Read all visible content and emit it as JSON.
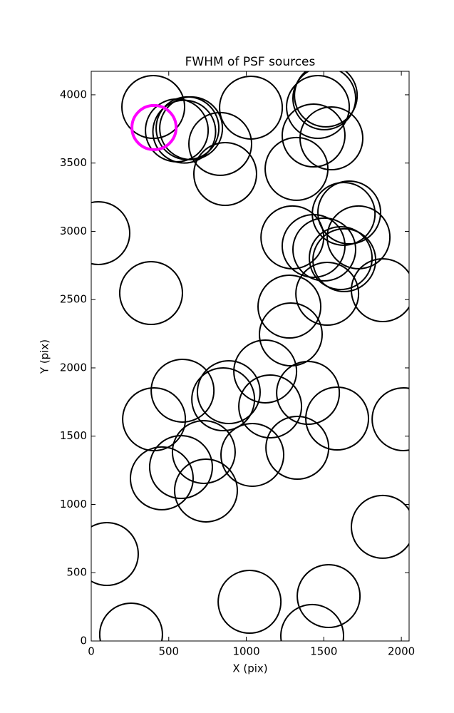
{
  "chart_data": {
    "type": "scatter",
    "title": "FWHM of PSF sources",
    "x_label": "X (pix)",
    "y_label": "Y (pix)",
    "xlim": [
      0,
      2050
    ],
    "ylim": [
      0,
      4172
    ],
    "xticks": [
      0,
      500,
      1000,
      1500,
      2000
    ],
    "yticks": [
      0,
      500,
      1000,
      1500,
      2000,
      2500,
      3000,
      3500,
      4000
    ],
    "series": [
      {
        "color": "#000000",
        "x": [
          400,
          552,
          621,
          644,
          600,
          832,
          864,
          1030,
          1513,
          1503,
          1462,
          1434,
          1549,
          1324,
          46,
          1664,
          1628,
          1724,
          1297,
          1434,
          1503,
          1609,
          1632,
          1880,
          1522,
          1278,
          386,
          1287,
          1122,
          589,
          887,
          851,
          1398,
          405,
          1154,
          1586,
          2014,
          1329,
          726,
          1039,
          579,
          740,
          455,
          1880,
          101,
          1021,
          1531,
          257,
          1425
        ],
        "values": [
          3911,
          3739,
          3755,
          3755,
          3730,
          3640,
          3420,
          3906,
          3995,
          3974,
          3911,
          3702,
          3681,
          3457,
          2987,
          3138,
          3128,
          2956,
          2956,
          2893,
          2867,
          2804,
          2789,
          2569,
          2543,
          2449,
          2548,
          2245,
          1974,
          1833,
          1822,
          1770,
          1817,
          1624,
          1718,
          1629,
          1624,
          1415,
          1384,
          1363,
          1274,
          1102,
          1191,
          836,
          637,
          287,
          329,
          47,
          37
        ]
      },
      {
        "color": "#ff00ff",
        "x": [
          405
        ],
        "values": [
          3760
        ]
      }
    ]
  }
}
